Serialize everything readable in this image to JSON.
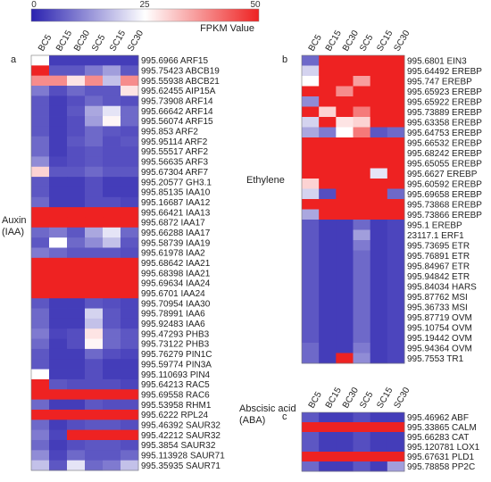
{
  "legend": {
    "title": "FPKM Value",
    "ticks": [
      "0",
      "25",
      "50"
    ],
    "colors": [
      "#2a22b0",
      "#ffffff",
      "#ee2222"
    ]
  },
  "chart_data": [
    {
      "type": "heatmap",
      "panel_label": "a",
      "group_label": "Auxin\n(IAA)",
      "columns": [
        "BC5",
        "BC15",
        "BC30",
        "SC5",
        "SC15",
        "SC30"
      ],
      "color_range": [
        0,
        50
      ],
      "rows": [
        {
          "label": "995.6966 ARF15",
          "values": [
            25,
            3,
            3,
            3,
            3,
            3
          ]
        },
        {
          "label": "995.75423 ABCB19",
          "values": [
            50,
            6,
            6,
            10,
            14,
            6
          ]
        },
        {
          "label": "995.55938 ABCB21",
          "values": [
            38,
            38,
            28,
            38,
            18,
            38
          ]
        },
        {
          "label": "995.62455 AIP15A",
          "values": [
            10,
            5,
            8,
            6,
            6,
            28
          ]
        },
        {
          "label": "995.73908 ARF14",
          "values": [
            6,
            3,
            5,
            8,
            6,
            5
          ]
        },
        {
          "label": "995.66642 ARF14",
          "values": [
            6,
            3,
            6,
            15,
            22,
            8
          ]
        },
        {
          "label": "995.56074 ARF15",
          "values": [
            6,
            3,
            5,
            14,
            26,
            8
          ]
        },
        {
          "label": "995.853 ARF2",
          "values": [
            6,
            3,
            5,
            8,
            6,
            5
          ]
        },
        {
          "label": "995.95114 ARF2",
          "values": [
            8,
            3,
            6,
            8,
            5,
            6
          ]
        },
        {
          "label": "995.55517 ARF2",
          "values": [
            8,
            3,
            5,
            6,
            5,
            5
          ]
        },
        {
          "label": "995.56635 ARF3",
          "values": [
            12,
            4,
            5,
            6,
            5,
            5
          ]
        },
        {
          "label": "995.67304 ARF7",
          "values": [
            30,
            6,
            6,
            8,
            6,
            6
          ]
        },
        {
          "label": "995.20577 GH3.1",
          "values": [
            6,
            3,
            3,
            5,
            3,
            3
          ]
        },
        {
          "label": "995.85135 IAA10",
          "values": [
            6,
            3,
            3,
            5,
            3,
            3
          ]
        },
        {
          "label": "995.16687 IAA12",
          "values": [
            8,
            3,
            3,
            5,
            5,
            4
          ]
        },
        {
          "label": "995.66421 IAA13",
          "values": [
            50,
            50,
            50,
            50,
            50,
            50
          ]
        },
        {
          "label": "995.6872 IAA17",
          "values": [
            50,
            50,
            50,
            50,
            50,
            50
          ]
        },
        {
          "label": "995.66288 IAA17",
          "values": [
            8,
            10,
            6,
            15,
            22,
            8
          ]
        },
        {
          "label": "995.58739 IAA19",
          "values": [
            6,
            25,
            8,
            12,
            18,
            6
          ]
        },
        {
          "label": "995.61978 IAA2",
          "values": [
            10,
            8,
            6,
            6,
            6,
            5
          ]
        },
        {
          "label": "995.68642 IAA21",
          "values": [
            50,
            50,
            50,
            50,
            50,
            50
          ]
        },
        {
          "label": "995.68398 IAA21",
          "values": [
            50,
            50,
            50,
            50,
            50,
            50
          ]
        },
        {
          "label": "995.69634 IAA24",
          "values": [
            50,
            50,
            50,
            50,
            50,
            50
          ]
        },
        {
          "label": "995.6701 IAA24",
          "values": [
            50,
            50,
            50,
            50,
            50,
            50
          ]
        },
        {
          "label": "995.70954 IAA30",
          "values": [
            6,
            3,
            3,
            6,
            5,
            4
          ]
        },
        {
          "label": "995.78991 IAA6",
          "values": [
            8,
            3,
            3,
            20,
            6,
            4
          ]
        },
        {
          "label": "995.92483 IAA6",
          "values": [
            8,
            3,
            3,
            18,
            6,
            4
          ]
        },
        {
          "label": "995.47293 PHB3",
          "values": [
            10,
            4,
            5,
            28,
            8,
            6
          ]
        },
        {
          "label": "995.73122 PHB3",
          "values": [
            8,
            3,
            5,
            26,
            8,
            6
          ]
        },
        {
          "label": "995.76279 PIN1C",
          "values": [
            6,
            3,
            3,
            8,
            5,
            4
          ]
        },
        {
          "label": "995.59774 PIN3A",
          "values": [
            6,
            3,
            3,
            5,
            3,
            3
          ]
        },
        {
          "label": "995.110693 PIN4",
          "values": [
            25,
            3,
            3,
            5,
            3,
            3
          ]
        },
        {
          "label": "995.64213 RAC5",
          "values": [
            50,
            6,
            5,
            5,
            5,
            4
          ]
        },
        {
          "label": "995.69558 RAC6",
          "values": [
            50,
            50,
            50,
            50,
            50,
            50
          ]
        },
        {
          "label": "995.53958 RHM1",
          "values": [
            8,
            3,
            3,
            6,
            5,
            5
          ]
        },
        {
          "label": "995.6222 RPL24",
          "values": [
            50,
            50,
            50,
            50,
            50,
            50
          ]
        },
        {
          "label": "995.46392 SAUR32",
          "values": [
            8,
            3,
            5,
            6,
            6,
            5
          ]
        },
        {
          "label": "995.42212 SAUR32",
          "values": [
            10,
            4,
            50,
            50,
            50,
            50
          ]
        },
        {
          "label": "995.3854 SAUR32",
          "values": [
            8,
            3,
            5,
            6,
            6,
            5
          ]
        },
        {
          "label": "995.113928 SAUR71",
          "values": [
            12,
            4,
            8,
            6,
            6,
            8
          ]
        },
        {
          "label": "995.35935 SAUR71",
          "values": [
            18,
            6,
            22,
            8,
            10,
            18
          ]
        }
      ]
    },
    {
      "type": "heatmap",
      "panel_label": "b",
      "group_label": "Ethylene",
      "columns": [
        "BC5",
        "BC15",
        "BC30",
        "SC5",
        "SC15",
        "SC30"
      ],
      "color_range": [
        0,
        50
      ],
      "rows": [
        {
          "label": "995.6801 EIN3",
          "values": [
            8,
            50,
            50,
            50,
            50,
            50
          ]
        },
        {
          "label": "995.64492 EREBP",
          "values": [
            20,
            50,
            50,
            50,
            50,
            50
          ]
        },
        {
          "label": "995.747 EREBP",
          "values": [
            25,
            50,
            50,
            36,
            50,
            50
          ]
        },
        {
          "label": "995.65923 EREBP",
          "values": [
            50,
            50,
            38,
            50,
            50,
            50
          ]
        },
        {
          "label": "995.65922 EREBP",
          "values": [
            12,
            50,
            50,
            50,
            50,
            50
          ]
        },
        {
          "label": "995.73889 EREBP",
          "values": [
            50,
            30,
            50,
            40,
            50,
            50
          ]
        },
        {
          "label": "995.63358 EREBP",
          "values": [
            20,
            50,
            28,
            30,
            50,
            50
          ]
        },
        {
          "label": "995.64753 EREBP",
          "values": [
            15,
            10,
            25,
            40,
            6,
            8
          ]
        },
        {
          "label": "995.66532 EREBP",
          "values": [
            50,
            50,
            50,
            50,
            50,
            50
          ]
        },
        {
          "label": "995.68242 EREBP",
          "values": [
            50,
            50,
            50,
            50,
            50,
            50
          ]
        },
        {
          "label": "995.65055 EREBP",
          "values": [
            50,
            50,
            50,
            50,
            50,
            50
          ]
        },
        {
          "label": "995.6627 EREBP",
          "values": [
            50,
            50,
            50,
            50,
            22,
            50
          ]
        },
        {
          "label": "995.60592 EREBP",
          "values": [
            30,
            50,
            50,
            50,
            50,
            50
          ]
        },
        {
          "label": "995.69658 EREBP",
          "values": [
            20,
            5,
            50,
            50,
            50,
            8
          ]
        },
        {
          "label": "995.73868 EREBP",
          "values": [
            50,
            50,
            50,
            50,
            50,
            50
          ]
        },
        {
          "label": "995.73866 EREBP",
          "values": [
            15,
            50,
            50,
            50,
            50,
            50
          ]
        },
        {
          "label": "995.1 EREBP",
          "values": [
            6,
            3,
            3,
            8,
            3,
            4
          ]
        },
        {
          "label": "23117.1 ERF1",
          "values": [
            6,
            3,
            3,
            14,
            3,
            4
          ]
        },
        {
          "label": "995.73695 ETR",
          "values": [
            6,
            3,
            3,
            10,
            3,
            4
          ]
        },
        {
          "label": "995.76891 ETR",
          "values": [
            6,
            3,
            3,
            8,
            3,
            4
          ]
        },
        {
          "label": "995.84967 ETR",
          "values": [
            6,
            3,
            3,
            8,
            3,
            4
          ]
        },
        {
          "label": "995.94842 ETR",
          "values": [
            6,
            3,
            3,
            8,
            3,
            4
          ]
        },
        {
          "label": "995.84034 HARS",
          "values": [
            6,
            3,
            3,
            8,
            3,
            4
          ]
        },
        {
          "label": "995.87762 MSI",
          "values": [
            6,
            3,
            3,
            8,
            3,
            4
          ]
        },
        {
          "label": "995.36733 MSI",
          "values": [
            6,
            3,
            3,
            8,
            3,
            4
          ]
        },
        {
          "label": "995.87719 OVM",
          "values": [
            6,
            3,
            3,
            8,
            3,
            4
          ]
        },
        {
          "label": "995.10754 OVM",
          "values": [
            6,
            3,
            3,
            8,
            3,
            4
          ]
        },
        {
          "label": "995.19442 OVM",
          "values": [
            6,
            3,
            3,
            8,
            3,
            4
          ]
        },
        {
          "label": "995.94364 OVM",
          "values": [
            8,
            3,
            3,
            10,
            3,
            4
          ]
        },
        {
          "label": "995.7553 TR1",
          "values": [
            8,
            3,
            50,
            12,
            3,
            4
          ]
        }
      ]
    },
    {
      "type": "heatmap",
      "panel_label": "c",
      "group_label": "Abscisic acid\n(ABA)",
      "columns": [
        "BC5",
        "BC15",
        "BC30",
        "SC5",
        "SC15",
        "SC30"
      ],
      "color_range": [
        0,
        50
      ],
      "rows": [
        {
          "label": "995.46962 ABF",
          "values": [
            6,
            3,
            3,
            5,
            3,
            3
          ]
        },
        {
          "label": "995.33865 CALM",
          "values": [
            50,
            50,
            50,
            50,
            50,
            50
          ]
        },
        {
          "label": "995.66283 CAT",
          "values": [
            6,
            3,
            3,
            5,
            3,
            3
          ]
        },
        {
          "label": "995.120781 LOX1",
          "values": [
            6,
            3,
            3,
            5,
            3,
            3
          ]
        },
        {
          "label": "995.67631 PLD1",
          "values": [
            50,
            50,
            50,
            50,
            50,
            50
          ]
        },
        {
          "label": "995.78858 PP2C",
          "values": [
            8,
            3,
            3,
            6,
            3,
            14
          ]
        }
      ]
    }
  ]
}
